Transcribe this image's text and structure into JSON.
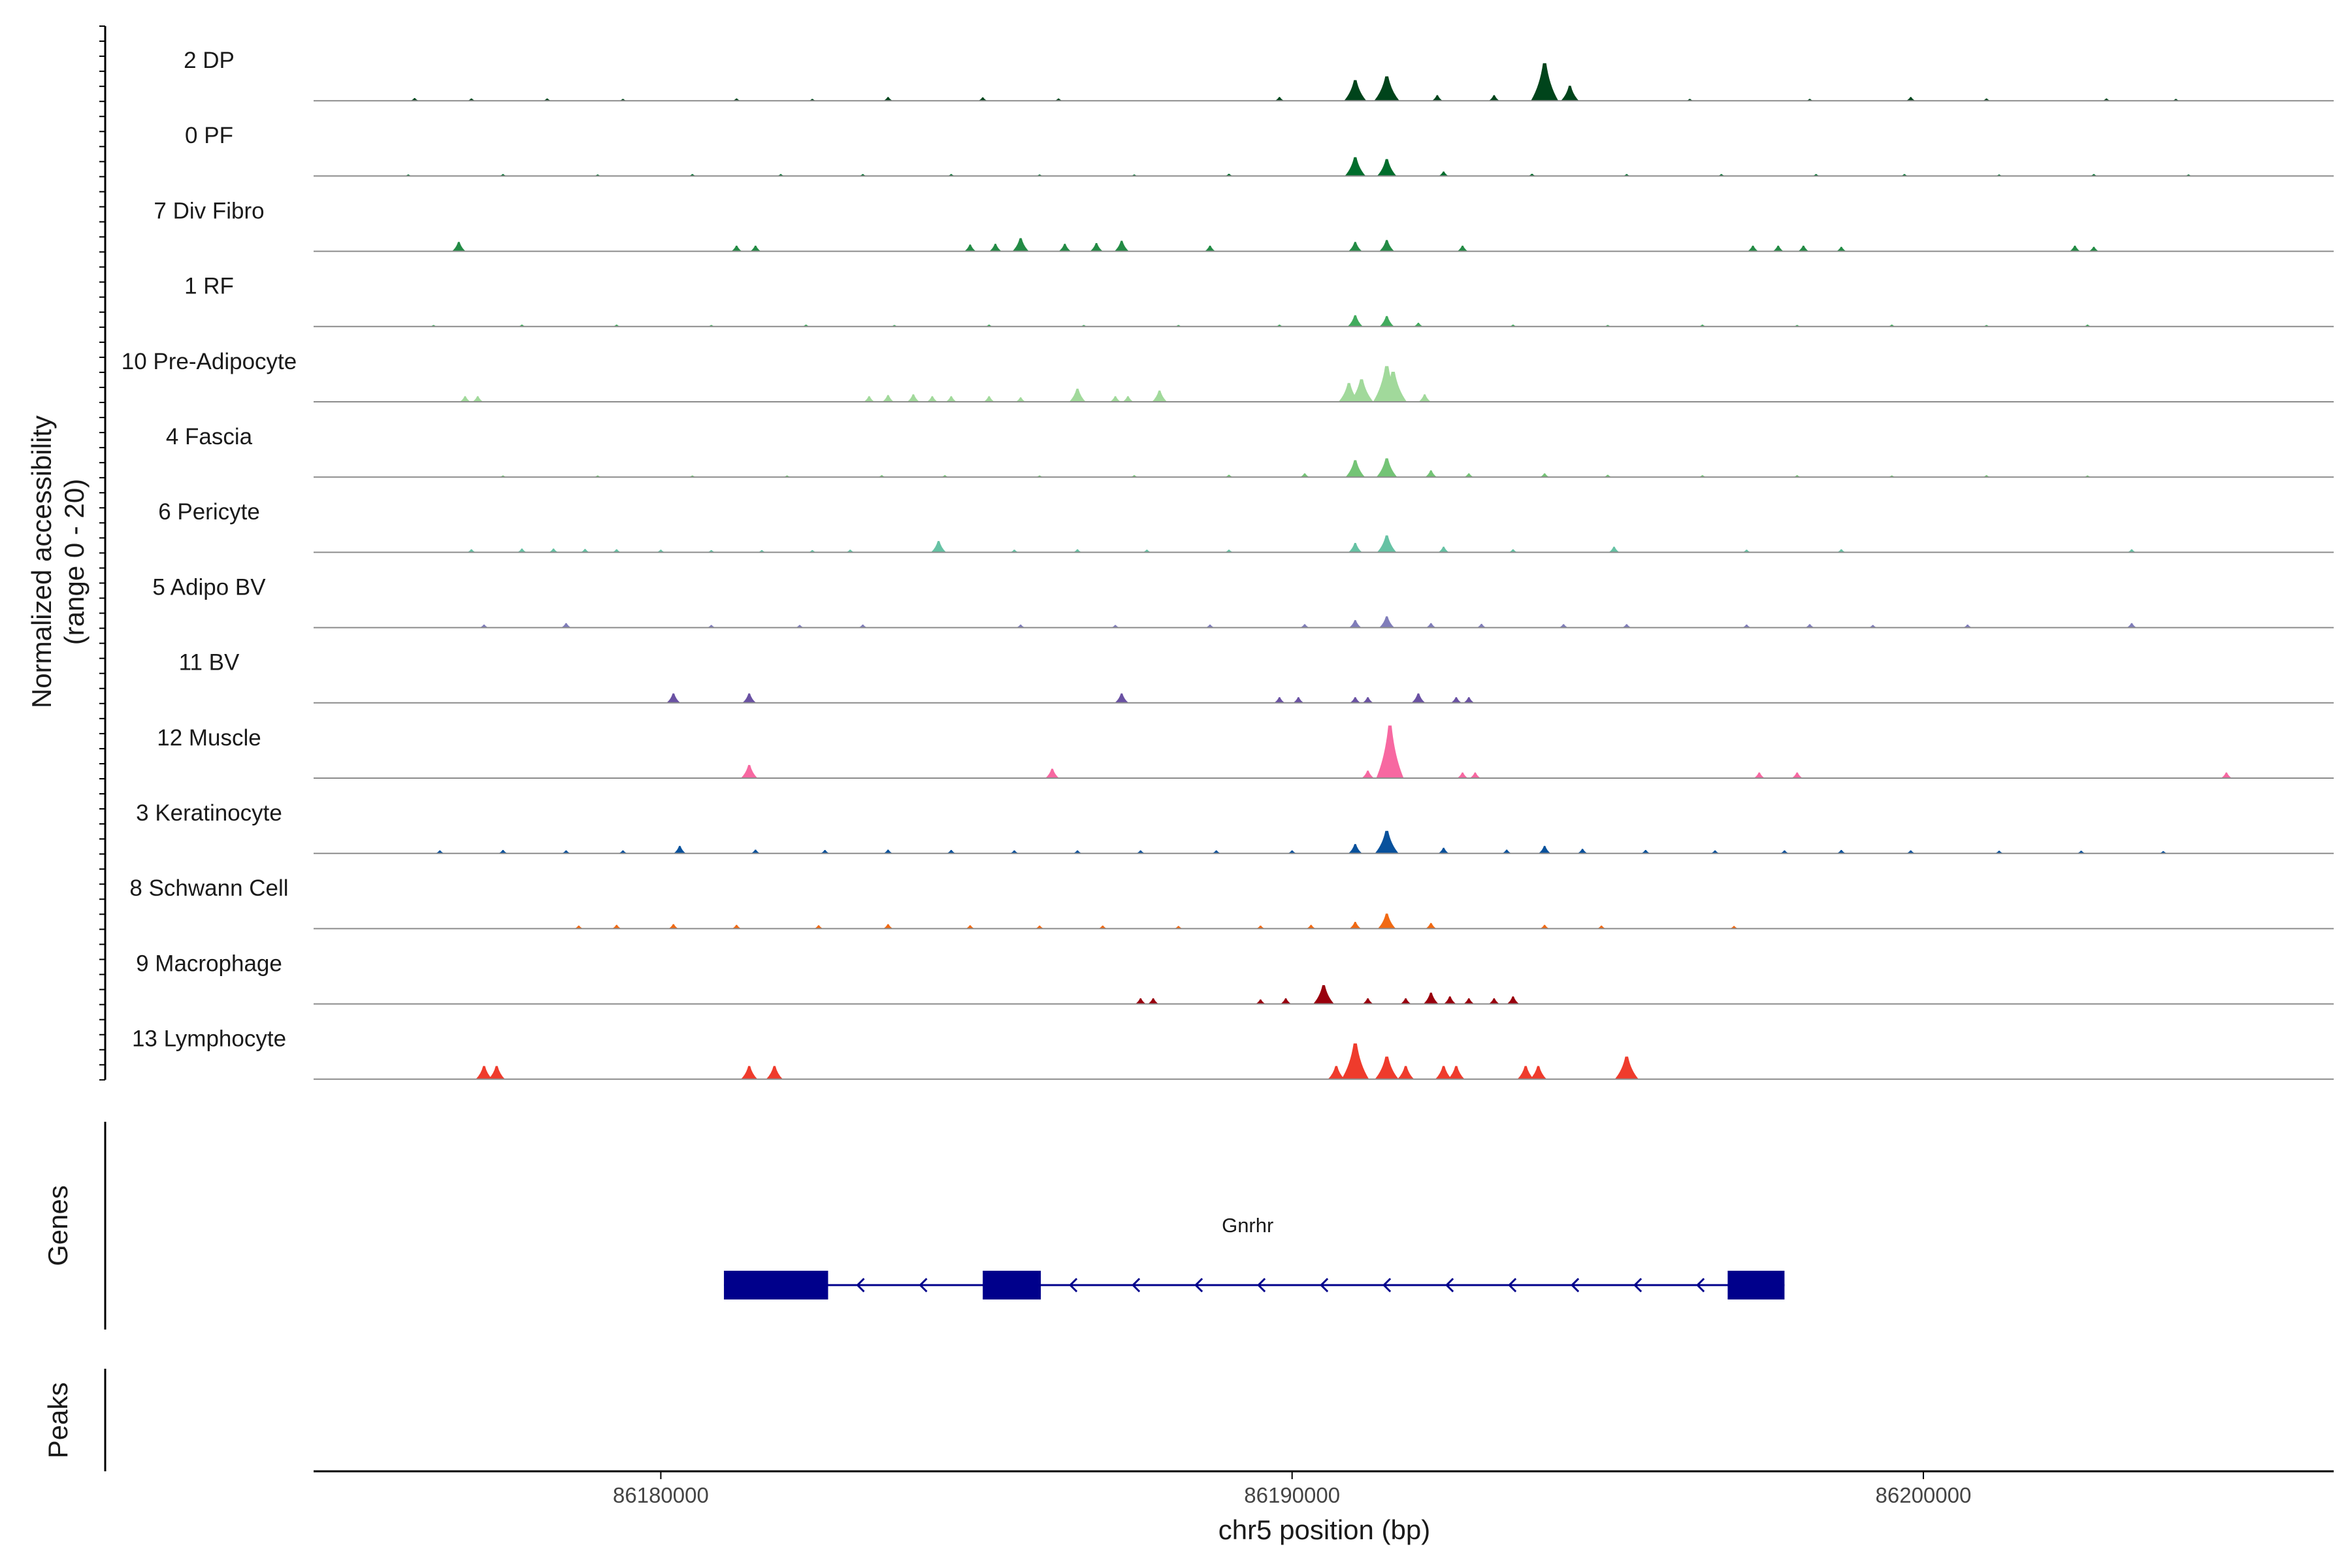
{
  "chart_data": {
    "type": "area",
    "title": "",
    "ylabel": "Normalized accessibility",
    "ylabel_range": "(range 0 - 20)",
    "ylim": [
      0,
      20
    ],
    "xlabel": "chr5 position (bp)",
    "xlim": [
      86174500,
      86206500
    ],
    "x_ticks": [
      86180000,
      86190000,
      86200000
    ],
    "x_tick_labels": [
      "86180000",
      "86190000",
      "86200000"
    ],
    "genes_label": "Genes",
    "peaks_label": "Peaks",
    "tracks": [
      {
        "name": "2 DP",
        "color": "#00441b",
        "peaks": [
          [
            86176100,
            0.7
          ],
          [
            86177000,
            0.6
          ],
          [
            86178200,
            0.6
          ],
          [
            86179400,
            0.5
          ],
          [
            86181200,
            0.6
          ],
          [
            86182400,
            0.5
          ],
          [
            86183600,
            1.0
          ],
          [
            86185100,
            0.9
          ],
          [
            86186300,
            0.6
          ],
          [
            86189800,
            1.0
          ],
          [
            86191000,
            5.5
          ],
          [
            86191500,
            6.5
          ],
          [
            86192300,
            1.5
          ],
          [
            86193200,
            1.5
          ],
          [
            86194000,
            10.0
          ],
          [
            86194400,
            4.0
          ],
          [
            86196300,
            0.5
          ],
          [
            86198200,
            0.5
          ],
          [
            86199800,
            1.0
          ],
          [
            86201000,
            0.6
          ],
          [
            86202900,
            0.6
          ],
          [
            86204000,
            0.5
          ]
        ]
      },
      {
        "name": "0 PF",
        "color": "#006d2c",
        "peaks": [
          [
            86176000,
            0.4
          ],
          [
            86177500,
            0.5
          ],
          [
            86179000,
            0.4
          ],
          [
            86180500,
            0.5
          ],
          [
            86181900,
            0.5
          ],
          [
            86183200,
            0.5
          ],
          [
            86184600,
            0.5
          ],
          [
            86186000,
            0.4
          ],
          [
            86187500,
            0.4
          ],
          [
            86189000,
            0.6
          ],
          [
            86191000,
            5.0
          ],
          [
            86191500,
            4.5
          ],
          [
            86192400,
            1.2
          ],
          [
            86193800,
            0.6
          ],
          [
            86195300,
            0.5
          ],
          [
            86196800,
            0.5
          ],
          [
            86198300,
            0.5
          ],
          [
            86199700,
            0.5
          ],
          [
            86201200,
            0.4
          ],
          [
            86202700,
            0.5
          ],
          [
            86204200,
            0.4
          ]
        ]
      },
      {
        "name": "7 Div Fibro",
        "color": "#238b45",
        "peaks": [
          [
            86176800,
            2.5
          ],
          [
            86181200,
            1.5
          ],
          [
            86181500,
            1.5
          ],
          [
            86184900,
            1.8
          ],
          [
            86185300,
            2.0
          ],
          [
            86185700,
            3.5
          ],
          [
            86186400,
            2.0
          ],
          [
            86186900,
            2.2
          ],
          [
            86187300,
            2.8
          ],
          [
            86188700,
            1.5
          ],
          [
            86191000,
            2.5
          ],
          [
            86191500,
            3.0
          ],
          [
            86192700,
            1.5
          ],
          [
            86197300,
            1.5
          ],
          [
            86197700,
            1.5
          ],
          [
            86198100,
            1.5
          ],
          [
            86198700,
            1.2
          ],
          [
            86202400,
            1.5
          ],
          [
            86202700,
            1.2
          ]
        ]
      },
      {
        "name": "1 RF",
        "color": "#41ab5d",
        "peaks": [
          [
            86176400,
            0.4
          ],
          [
            86177800,
            0.5
          ],
          [
            86179300,
            0.5
          ],
          [
            86180800,
            0.4
          ],
          [
            86182300,
            0.5
          ],
          [
            86183700,
            0.4
          ],
          [
            86185200,
            0.5
          ],
          [
            86186700,
            0.4
          ],
          [
            86188200,
            0.4
          ],
          [
            86189800,
            0.5
          ],
          [
            86191000,
            3.0
          ],
          [
            86191500,
            2.8
          ],
          [
            86192000,
            1.0
          ],
          [
            86193500,
            0.5
          ],
          [
            86195000,
            0.4
          ],
          [
            86196500,
            0.5
          ],
          [
            86198000,
            0.4
          ],
          [
            86199500,
            0.5
          ],
          [
            86201000,
            0.4
          ],
          [
            86202600,
            0.5
          ]
        ]
      },
      {
        "name": "10 Pre-Adipocyte",
        "color": "#a1d99b",
        "peaks": [
          [
            86176900,
            1.5
          ],
          [
            86177100,
            1.5
          ],
          [
            86183300,
            1.5
          ],
          [
            86183600,
            1.8
          ],
          [
            86184000,
            2.0
          ],
          [
            86184300,
            1.5
          ],
          [
            86184600,
            1.5
          ],
          [
            86185200,
            1.5
          ],
          [
            86185700,
            1.2
          ],
          [
            86186600,
            3.5
          ],
          [
            86187200,
            1.5
          ],
          [
            86187400,
            1.5
          ],
          [
            86187900,
            3.0
          ],
          [
            86190900,
            5.0
          ],
          [
            86191100,
            6.0
          ],
          [
            86191500,
            9.5
          ],
          [
            86191600,
            8.0
          ],
          [
            86192100,
            2.0
          ]
        ]
      },
      {
        "name": "4 Fascia",
        "color": "#74c476",
        "peaks": [
          [
            86177500,
            0.4
          ],
          [
            86179000,
            0.4
          ],
          [
            86180500,
            0.4
          ],
          [
            86182000,
            0.4
          ],
          [
            86183500,
            0.5
          ],
          [
            86184500,
            0.5
          ],
          [
            86186000,
            0.4
          ],
          [
            86187500,
            0.5
          ],
          [
            86189000,
            0.6
          ],
          [
            86190200,
            1.0
          ],
          [
            86191000,
            4.5
          ],
          [
            86191500,
            5.0
          ],
          [
            86192200,
            1.8
          ],
          [
            86192800,
            1.0
          ],
          [
            86194000,
            1.0
          ],
          [
            86195000,
            0.6
          ],
          [
            86196500,
            0.5
          ],
          [
            86198000,
            0.5
          ],
          [
            86199500,
            0.4
          ],
          [
            86201000,
            0.5
          ],
          [
            86202600,
            0.4
          ]
        ]
      },
      {
        "name": "6 Pericyte",
        "color": "#66c2a4",
        "peaks": [
          [
            86177000,
            0.8
          ],
          [
            86177800,
            1.0
          ],
          [
            86178300,
            1.0
          ],
          [
            86178800,
            0.9
          ],
          [
            86179300,
            0.8
          ],
          [
            86180000,
            0.7
          ],
          [
            86180800,
            0.6
          ],
          [
            86181600,
            0.6
          ],
          [
            86182400,
            0.6
          ],
          [
            86183000,
            0.7
          ],
          [
            86184400,
            3.0
          ],
          [
            86185600,
            0.7
          ],
          [
            86186600,
            0.8
          ],
          [
            86187700,
            0.7
          ],
          [
            86189000,
            0.7
          ],
          [
            86191000,
            2.5
          ],
          [
            86191500,
            4.5
          ],
          [
            86192400,
            1.5
          ],
          [
            86193500,
            0.8
          ],
          [
            86195100,
            1.5
          ],
          [
            86197200,
            0.7
          ],
          [
            86198700,
            0.8
          ],
          [
            86203300,
            0.8
          ]
        ]
      },
      {
        "name": "5 Adipo BV",
        "color": "#807dba",
        "peaks": [
          [
            86177200,
            0.8
          ],
          [
            86178500,
            1.2
          ],
          [
            86180800,
            0.7
          ],
          [
            86182200,
            0.7
          ],
          [
            86183200,
            0.8
          ],
          [
            86185700,
            0.8
          ],
          [
            86187200,
            0.7
          ],
          [
            86188700,
            0.8
          ],
          [
            86190200,
            0.9
          ],
          [
            86191000,
            2.0
          ],
          [
            86191500,
            3.0
          ],
          [
            86192200,
            1.2
          ],
          [
            86193000,
            1.0
          ],
          [
            86194300,
            0.9
          ],
          [
            86195300,
            0.9
          ],
          [
            86197200,
            0.8
          ],
          [
            86198200,
            0.9
          ],
          [
            86199200,
            0.7
          ],
          [
            86200700,
            0.8
          ],
          [
            86203300,
            1.2
          ]
        ]
      },
      {
        "name": "11 BV",
        "color": "#6a51a3",
        "peaks": [
          [
            86180200,
            2.5
          ],
          [
            86181400,
            2.5
          ],
          [
            86187300,
            2.5
          ],
          [
            86189800,
            1.5
          ],
          [
            86190100,
            1.5
          ],
          [
            86191000,
            1.5
          ],
          [
            86191200,
            1.5
          ],
          [
            86192000,
            2.5
          ],
          [
            86192600,
            1.5
          ],
          [
            86192800,
            1.5
          ]
        ]
      },
      {
        "name": "12 Muscle",
        "color": "#f768a1",
        "peaks": [
          [
            86181400,
            3.5
          ],
          [
            86186200,
            2.5
          ],
          [
            86191200,
            2.0
          ],
          [
            86191550,
            14.0
          ],
          [
            86192700,
            1.5
          ],
          [
            86192900,
            1.5
          ],
          [
            86197400,
            1.5
          ],
          [
            86198000,
            1.5
          ],
          [
            86204800,
            1.5
          ]
        ]
      },
      {
        "name": "3 Keratinocyte",
        "color": "#08519c",
        "peaks": [
          [
            86176500,
            0.8
          ],
          [
            86177500,
            0.9
          ],
          [
            86178500,
            0.8
          ],
          [
            86179400,
            0.8
          ],
          [
            86180300,
            2.0
          ],
          [
            86181500,
            1.0
          ],
          [
            86182600,
            0.9
          ],
          [
            86183600,
            1.0
          ],
          [
            86184600,
            0.9
          ],
          [
            86185600,
            0.8
          ],
          [
            86186600,
            0.8
          ],
          [
            86187600,
            0.8
          ],
          [
            86188800,
            0.8
          ],
          [
            86190000,
            0.8
          ],
          [
            86191000,
            2.5
          ],
          [
            86191500,
            6.0
          ],
          [
            86192400,
            1.5
          ],
          [
            86193400,
            1.0
          ],
          [
            86194000,
            2.0
          ],
          [
            86194600,
            1.2
          ],
          [
            86195600,
            0.9
          ],
          [
            86196700,
            0.8
          ],
          [
            86197800,
            0.8
          ],
          [
            86198700,
            0.9
          ],
          [
            86199800,
            0.8
          ],
          [
            86201200,
            0.7
          ],
          [
            86202500,
            0.7
          ],
          [
            86203800,
            0.6
          ]
        ]
      },
      {
        "name": "8 Schwann Cell",
        "color": "#f16913",
        "peaks": [
          [
            86178700,
            0.8
          ],
          [
            86179300,
            1.0
          ],
          [
            86180200,
            1.2
          ],
          [
            86181200,
            1.0
          ],
          [
            86182500,
            0.9
          ],
          [
            86183600,
            1.2
          ],
          [
            86184900,
            0.9
          ],
          [
            86186000,
            0.8
          ],
          [
            86187000,
            0.8
          ],
          [
            86188200,
            0.7
          ],
          [
            86189500,
            0.8
          ],
          [
            86190300,
            1.0
          ],
          [
            86191000,
            1.8
          ],
          [
            86191500,
            4.0
          ],
          [
            86192200,
            1.5
          ],
          [
            86194000,
            1.0
          ],
          [
            86194900,
            0.8
          ],
          [
            86197000,
            0.7
          ]
        ]
      },
      {
        "name": "9 Macrophage",
        "color": "#99000d",
        "peaks": [
          [
            86187600,
            1.5
          ],
          [
            86187800,
            1.5
          ],
          [
            86189500,
            1.2
          ],
          [
            86189900,
            1.5
          ],
          [
            86190500,
            5.0
          ],
          [
            86191200,
            1.5
          ],
          [
            86191800,
            1.5
          ],
          [
            86192200,
            3.0
          ],
          [
            86192500,
            2.0
          ],
          [
            86192800,
            1.5
          ],
          [
            86193200,
            1.5
          ],
          [
            86193500,
            2.0
          ]
        ]
      },
      {
        "name": "13 Lymphocyte",
        "color": "#ef3b2c",
        "peaks": [
          [
            86177200,
            3.5
          ],
          [
            86177400,
            3.5
          ],
          [
            86181400,
            3.5
          ],
          [
            86181800,
            3.5
          ],
          [
            86190700,
            3.5
          ],
          [
            86191000,
            9.5
          ],
          [
            86191500,
            6.0
          ],
          [
            86191800,
            3.5
          ],
          [
            86192400,
            3.5
          ],
          [
            86192600,
            3.5
          ],
          [
            86193700,
            3.5
          ],
          [
            86193900,
            3.5
          ],
          [
            86195300,
            6.0
          ]
        ]
      }
    ],
    "gene": {
      "name": "Gnrhr",
      "color": "#00008b",
      "strand": "-",
      "start": 86181000,
      "end": 86197800,
      "exons": [
        [
          86181000,
          86182650
        ],
        [
          86185100,
          86186020
        ],
        [
          86196900,
          86197800
        ]
      ]
    },
    "peak_regions": []
  }
}
